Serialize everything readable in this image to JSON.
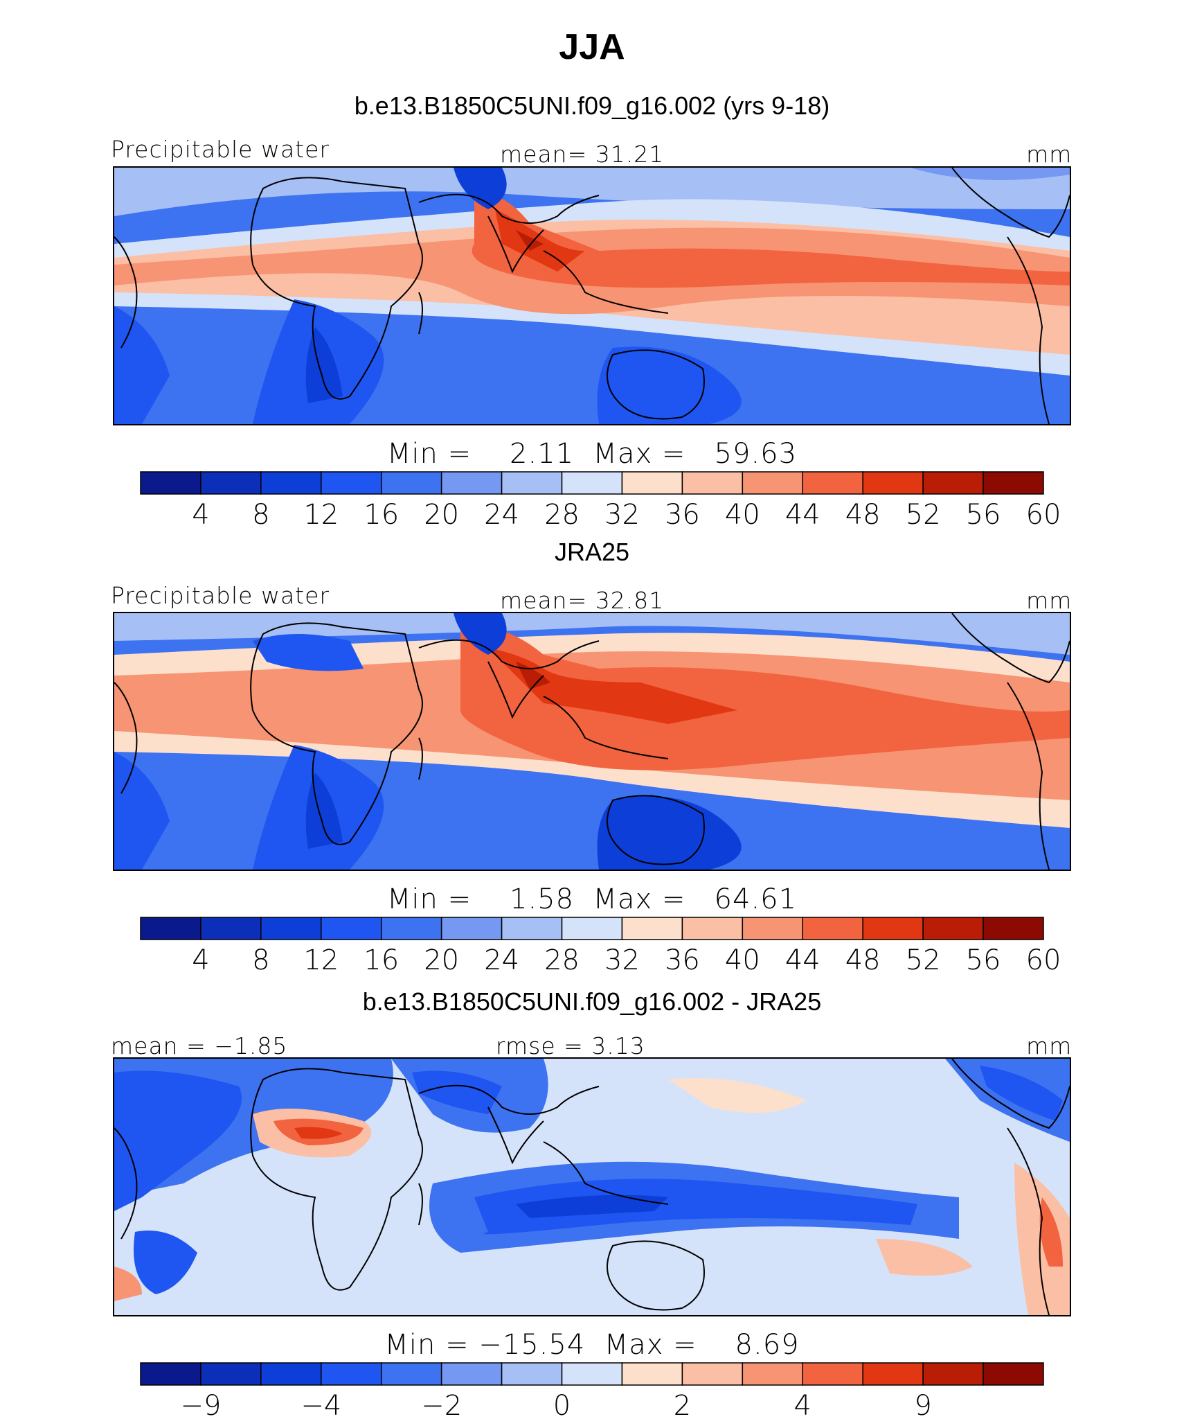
{
  "title": "JJA",
  "colors": {
    "palette": [
      "#0a1a8c",
      "#0b2fb8",
      "#0d3fd8",
      "#1f55f0",
      "#3d72f0",
      "#7598f2",
      "#a6bff5",
      "#d5e3fa",
      "#fde0cc",
      "#fbbfa5",
      "#f79474",
      "#f1643f",
      "#e13712",
      "#b91d06",
      "#8c0a02"
    ],
    "diff_palette": [
      "#0a1a8c",
      "#0b2fb8",
      "#0d3fd8",
      "#1f55f0",
      "#3d72f0",
      "#7598f2",
      "#a6bff5",
      "#d5e3fa",
      "#fde0cc",
      "#fbbfa5",
      "#f79474",
      "#f1643f",
      "#e13712",
      "#b91d06",
      "#8c0a02"
    ]
  },
  "panels": [
    {
      "subtitle": "b.e13.B1850C5UNI.f09_g16.002 (yrs 9-18)",
      "left_label": "Precipitable water",
      "center_label": "mean=  31.21",
      "right_label": "mm",
      "stats": "Min =    2.11  Max =   59.63",
      "colorbar_ticks": [
        "4",
        "8",
        "12",
        "16",
        "20",
        "24",
        "28",
        "32",
        "36",
        "40",
        "44",
        "48",
        "52",
        "56",
        "60"
      ]
    },
    {
      "subtitle": "JRA25",
      "left_label": "Precipitable water",
      "center_label": "mean=  32.81",
      "right_label": "mm",
      "stats": "Min =    1.58  Max =   64.61",
      "colorbar_ticks": [
        "4",
        "8",
        "12",
        "16",
        "20",
        "24",
        "28",
        "32",
        "36",
        "40",
        "44",
        "48",
        "52",
        "56",
        "60"
      ]
    },
    {
      "subtitle": "b.e13.B1850C5UNI.f09_g16.002 - JRA25",
      "left_label": "mean =  −1.85",
      "center_label": "rmse =   3.13",
      "right_label": "mm",
      "stats": "Min = −15.54  Max =    8.69",
      "colorbar_ticks": [
        "−9",
        "",
        "−4",
        "",
        "−2",
        "",
        "0",
        "",
        "2",
        "",
        "4",
        "",
        "9",
        ""
      ]
    }
  ],
  "chart_data": [
    {
      "type": "heatmap",
      "title": "JJA",
      "subtitle": "b.e13.B1850C5UNI.f09_g16.002 (yrs 9-18)",
      "variable": "Precipitable water",
      "units": "mm",
      "mean": 31.21,
      "min": 2.11,
      "max": 59.63,
      "contour_levels": [
        4,
        8,
        12,
        16,
        20,
        24,
        28,
        32,
        36,
        40,
        44,
        48,
        52,
        56,
        60
      ]
    },
    {
      "type": "heatmap",
      "title": "JJA",
      "subtitle": "JRA25",
      "variable": "Precipitable water",
      "units": "mm",
      "mean": 32.81,
      "min": 1.58,
      "max": 64.61,
      "contour_levels": [
        4,
        8,
        12,
        16,
        20,
        24,
        28,
        32,
        36,
        40,
        44,
        48,
        52,
        56,
        60
      ]
    },
    {
      "type": "heatmap",
      "title": "JJA",
      "subtitle": "b.e13.B1850C5UNI.f09_g16.002 - JRA25",
      "units": "mm",
      "mean": -1.85,
      "rmse": 3.13,
      "min": -15.54,
      "max": 8.69,
      "contour_levels_labeled": [
        -9,
        -4,
        -2,
        0,
        2,
        4,
        9
      ]
    }
  ]
}
